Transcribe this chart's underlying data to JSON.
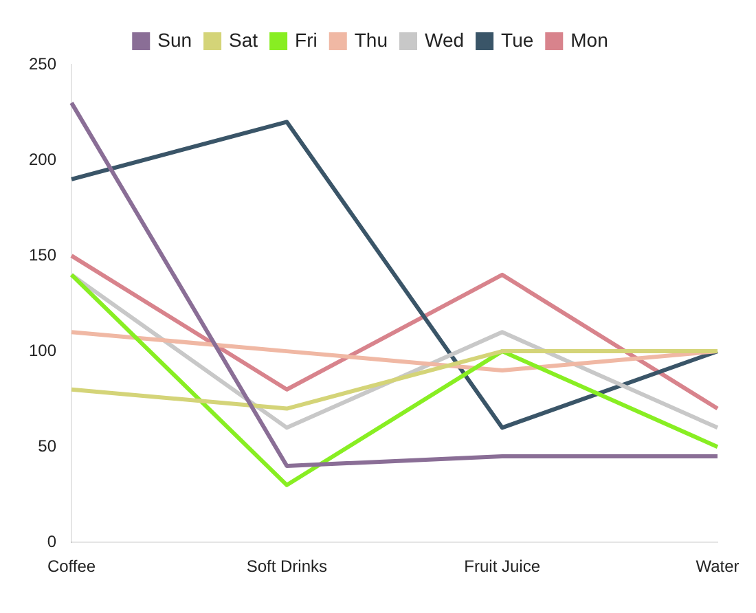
{
  "chart_data": {
    "type": "line",
    "categories": [
      "Coffee",
      "Soft Drinks",
      "Fruit Juice",
      "Water"
    ],
    "series": [
      {
        "name": "Sun",
        "color": "#8a6e96",
        "values": [
          230,
          40,
          45,
          45
        ]
      },
      {
        "name": "Sat",
        "color": "#d4d478",
        "values": [
          80,
          70,
          100,
          100
        ]
      },
      {
        "name": "Fri",
        "color": "#88ee22",
        "values": [
          140,
          30,
          100,
          50
        ]
      },
      {
        "name": "Thu",
        "color": "#f0b8a4",
        "values": [
          110,
          100,
          90,
          100
        ]
      },
      {
        "name": "Wed",
        "color": "#c8c8c8",
        "values": [
          140,
          60,
          110,
          60
        ]
      },
      {
        "name": "Tue",
        "color": "#3a5568",
        "values": [
          190,
          220,
          60,
          100
        ]
      },
      {
        "name": "Mon",
        "color": "#d8838c",
        "values": [
          150,
          80,
          140,
          70
        ]
      }
    ],
    "ylim": [
      0,
      250
    ],
    "yticks": [
      0,
      50,
      100,
      150,
      200,
      250
    ],
    "grid": false,
    "legend": "top",
    "marker": "none",
    "line_style": "solid"
  }
}
